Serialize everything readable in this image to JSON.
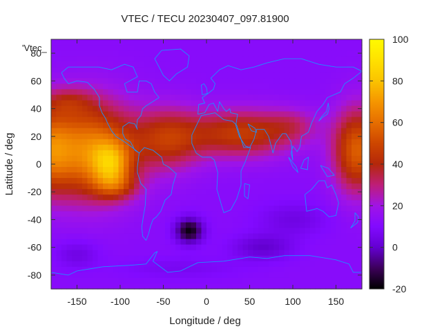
{
  "chart_data": {
    "type": "heatmap",
    "title": "VTEC / TECU 20230407_097.81900",
    "xlabel": "Longitude / deg",
    "ylabel": "Latitude / deg",
    "legend_label": "'Vtec_",
    "xlim": [
      -180,
      180
    ],
    "ylim": [
      -90,
      90
    ],
    "x_ticks": [
      -150,
      -100,
      -50,
      0,
      50,
      100,
      150
    ],
    "y_ticks": [
      -80,
      -60,
      -40,
      -20,
      0,
      20,
      40,
      60,
      80
    ],
    "x_tick_labels": [
      "-150",
      "-100",
      "-50",
      "0",
      "50",
      "100",
      "150"
    ],
    "y_tick_labels": [
      "-80",
      "-60",
      "-40",
      "-20",
      "0",
      "20",
      "40",
      "60",
      "80"
    ],
    "colorbar": {
      "range": [
        -20,
        100
      ],
      "ticks": [
        -20,
        0,
        20,
        40,
        60,
        80,
        100
      ],
      "tick_labels": [
        "-20",
        "0",
        "20",
        "40",
        "60",
        "80",
        "100"
      ],
      "palette": "gnuplot black-purple-red-orange-yellow"
    },
    "field_features": [
      {
        "kind": "peak",
        "lon": -118,
        "lat": 2,
        "value": 95
      },
      {
        "kind": "southern-crest",
        "lon": -105,
        "lat": -16,
        "value": 82
      },
      {
        "kind": "minimum",
        "lon": -20,
        "lat": -48,
        "value": -15
      },
      {
        "kind": "minimum",
        "lon": 65,
        "lat": -60,
        "value": 2
      }
    ],
    "coastlines": true,
    "grid": false
  },
  "colors": {
    "coastline": "#1e90ff",
    "background": "#ffffff",
    "text": "#222222"
  }
}
